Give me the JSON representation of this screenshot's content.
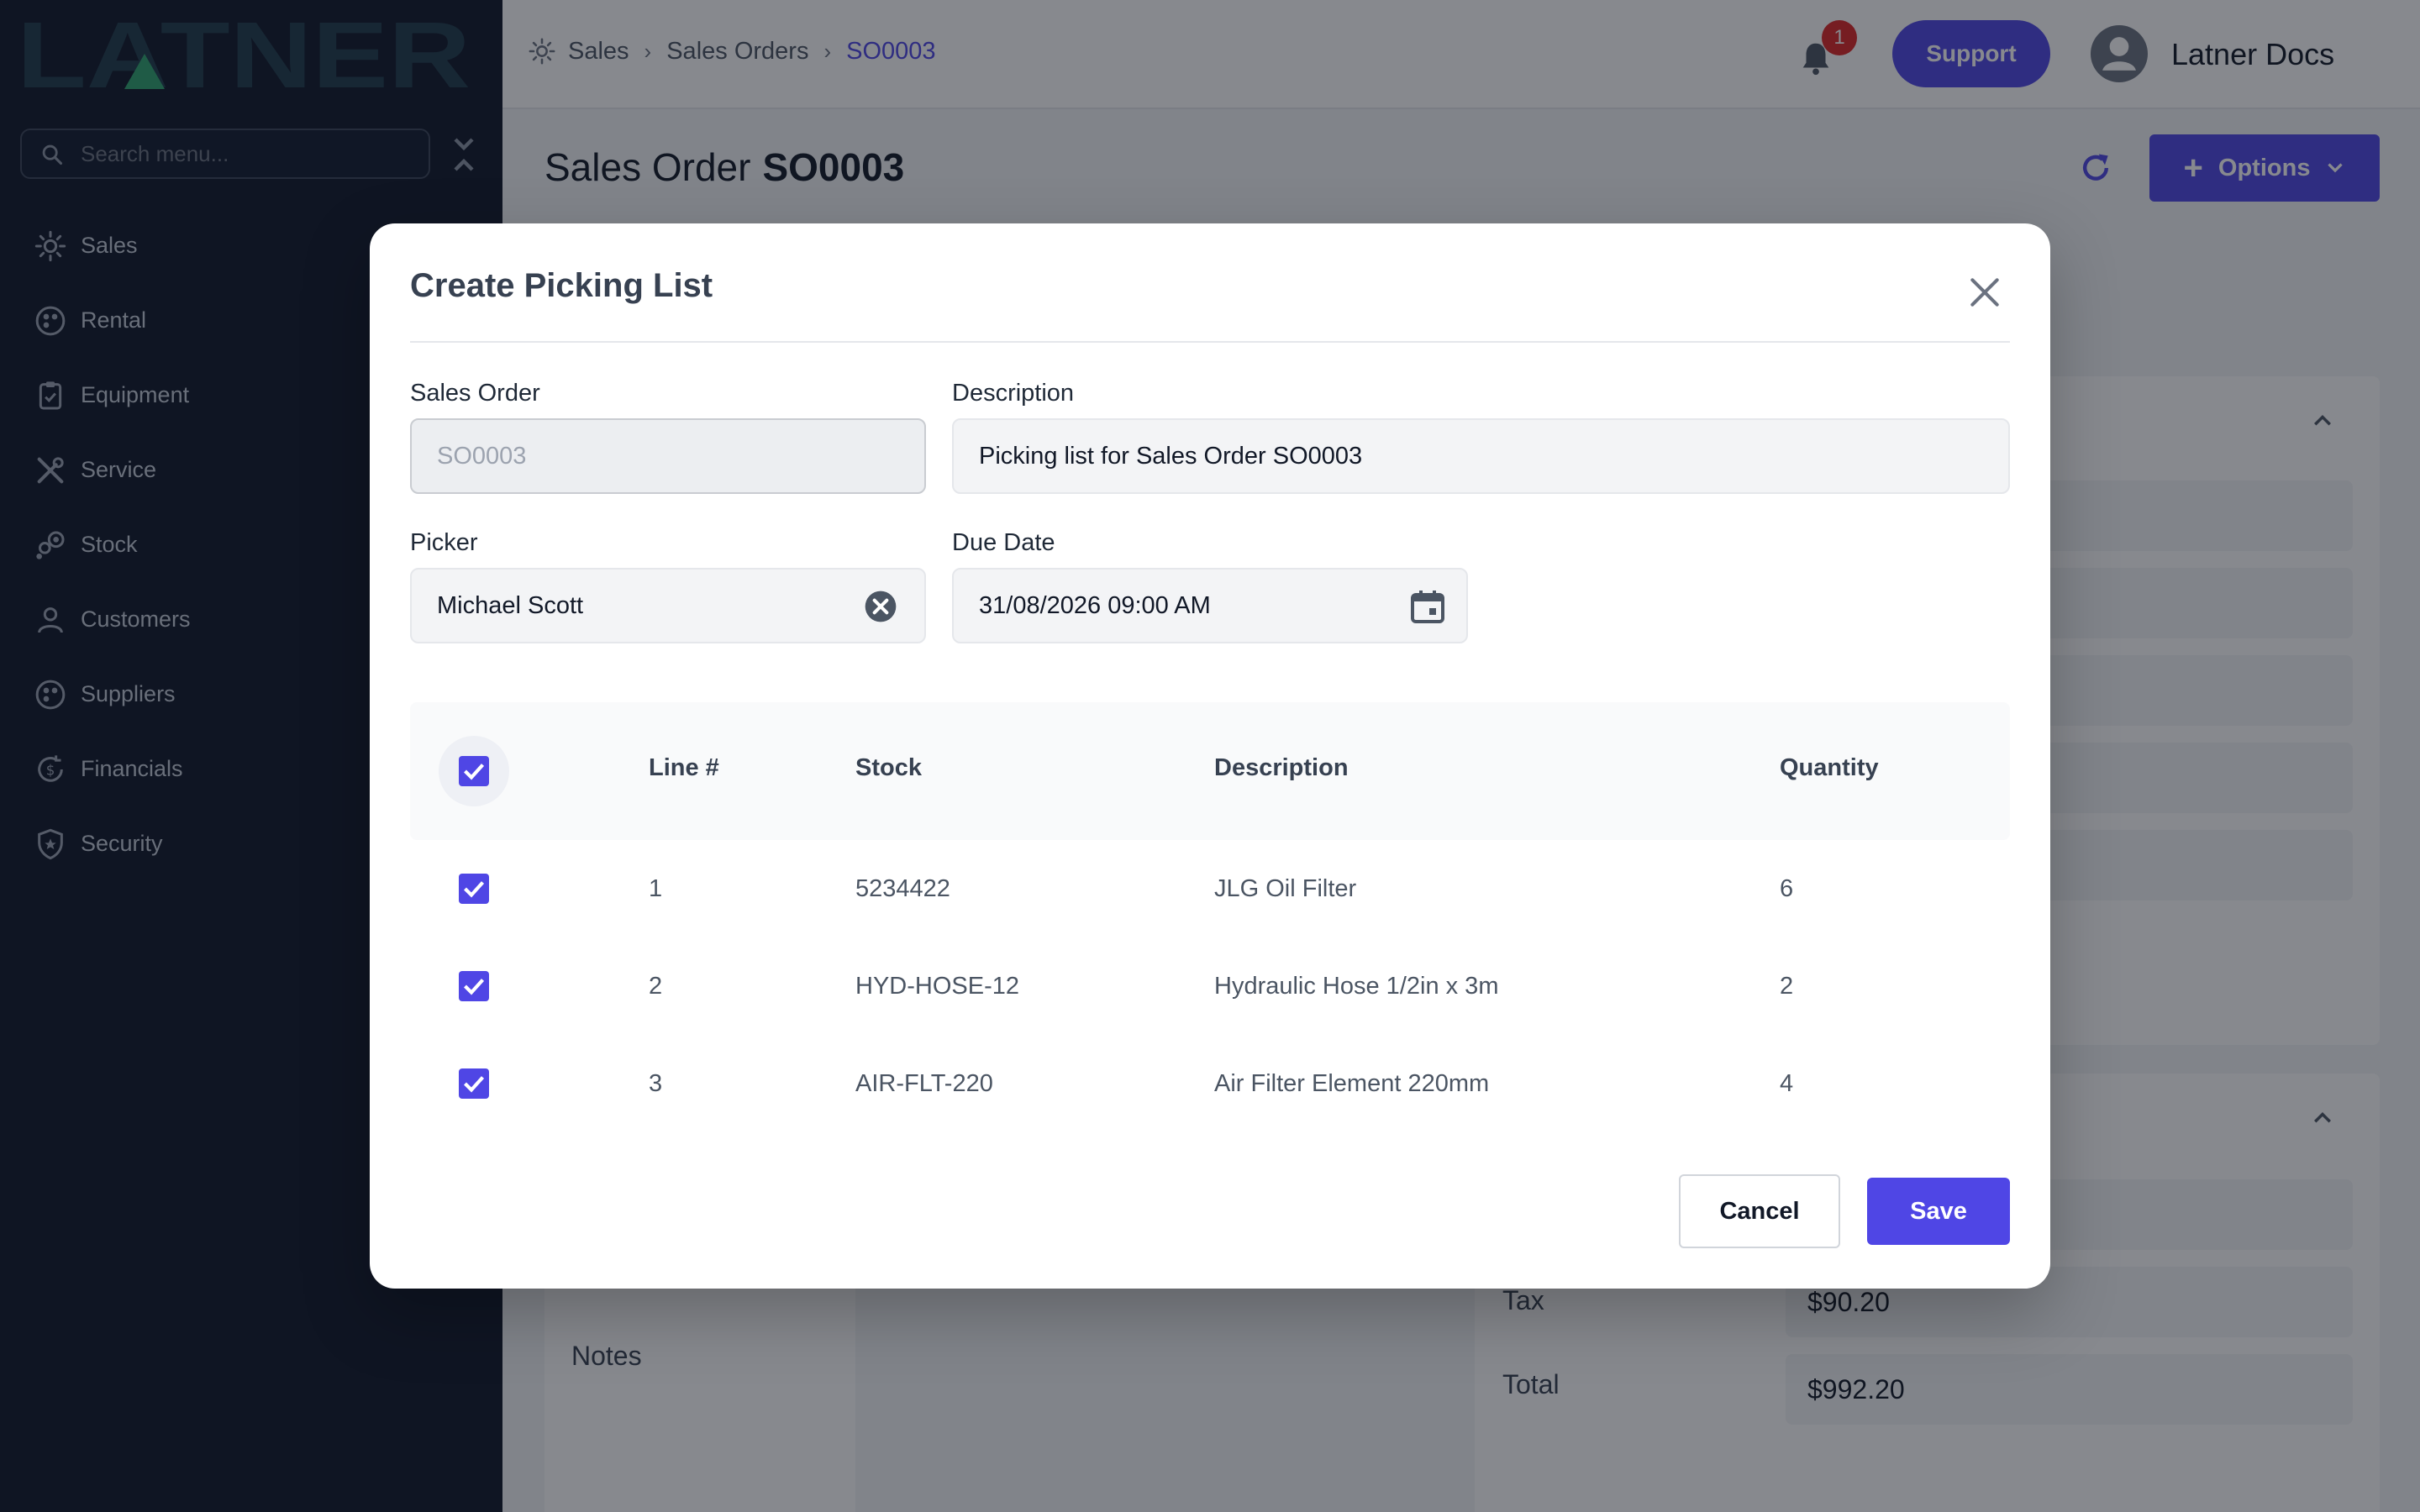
{
  "brand": {
    "logo_text": "LATNER"
  },
  "sidebar": {
    "search_placeholder": "Search menu...",
    "items": [
      {
        "label": "Sales",
        "icon": "sales-icon"
      },
      {
        "label": "Rental",
        "icon": "rental-icon"
      },
      {
        "label": "Equipment",
        "icon": "equipment-icon"
      },
      {
        "label": "Service",
        "icon": "service-icon"
      },
      {
        "label": "Stock",
        "icon": "stock-icon"
      },
      {
        "label": "Customers",
        "icon": "customers-icon"
      },
      {
        "label": "Suppliers",
        "icon": "suppliers-icon"
      },
      {
        "label": "Financials",
        "icon": "financials-icon"
      },
      {
        "label": "Security",
        "icon": "security-icon"
      }
    ]
  },
  "header": {
    "breadcrumb": [
      "Sales",
      "Sales Orders",
      "SO0003"
    ],
    "notification_count": "1",
    "support_label": "Support",
    "user_name": "Latner Docs"
  },
  "page": {
    "title_prefix": "Sales Order",
    "title_id": "SO0003",
    "options_label": "Options",
    "notes_label": "Notes",
    "tax_label": "Tax",
    "tax_value": "$90.20",
    "total_label": "Total",
    "total_value": "$992.20"
  },
  "modal": {
    "title": "Create Picking List",
    "sales_order_label": "Sales Order",
    "sales_order_value": "SO0003",
    "description_label": "Description",
    "description_value": "Picking list for Sales Order SO0003",
    "picker_label": "Picker",
    "picker_value": "Michael Scott",
    "due_date_label": "Due Date",
    "due_date_value": "31/08/2026 09:00 AM",
    "columns": [
      "Line #",
      "Stock",
      "Description",
      "Quantity"
    ],
    "rows": [
      {
        "line": "1",
        "stock": "5234422",
        "description": "JLG Oil Filter",
        "quantity": "6"
      },
      {
        "line": "2",
        "stock": "HYD-HOSE-12",
        "description": "Hydraulic Hose 1/2in x 3m",
        "quantity": "2"
      },
      {
        "line": "3",
        "stock": "AIR-FLT-220",
        "description": "Air Filter Element 220mm",
        "quantity": "4"
      }
    ],
    "cancel_label": "Cancel",
    "save_label": "Save"
  },
  "colors": {
    "accent": "#4f46e5",
    "sidebar_bg": "#0f1729",
    "danger": "#dc2626"
  }
}
